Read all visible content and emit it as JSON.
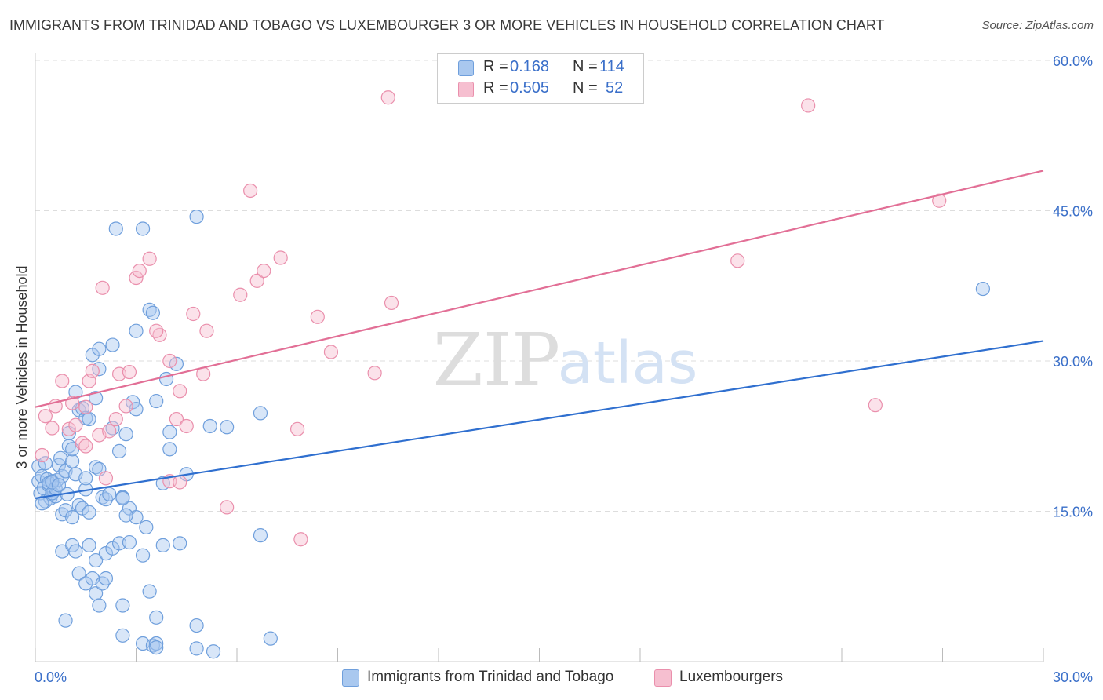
{
  "title": "IMMIGRANTS FROM TRINIDAD AND TOBAGO VS LUXEMBOURGER 3 OR MORE VEHICLES IN HOUSEHOLD CORRELATION CHART",
  "source": "Source: ZipAtlas.com",
  "watermark": {
    "zip": "ZIP",
    "atlas": "atlas"
  },
  "legend": {
    "rows": [
      {
        "r_label": "R =",
        "r_value": "0.168",
        "n_label": "N =",
        "n_value": "114"
      },
      {
        "r_label": "R =",
        "r_value": "0.505",
        "n_label": "N =",
        "n_value": "52"
      }
    ]
  },
  "colors": {
    "blue_fill": "#a9c8ef",
    "blue_stroke": "#6f9fdc",
    "blue_line": "#2f6fcf",
    "pink_fill": "#f6bfd0",
    "pink_stroke": "#ea8fac",
    "pink_line": "#e26f96",
    "tick_label": "#3a6fc9",
    "grid": "#dddddd"
  },
  "chart_data": {
    "type": "scatter",
    "title": "IMMIGRANTS FROM TRINIDAD AND TOBAGO VS LUXEMBOURGER 3 OR MORE VEHICLES IN HOUSEHOLD CORRELATION CHART",
    "xlabel": "",
    "ylabel": "3 or more Vehicles in Household",
    "xlim": [
      0,
      30
    ],
    "ylim": [
      0,
      60
    ],
    "x_tick_labels": [
      "0.0%",
      "30.0%"
    ],
    "y_ticks": [
      15,
      30,
      45,
      60
    ],
    "y_tick_labels": [
      "15.0%",
      "30.0%",
      "45.0%",
      "60.0%"
    ],
    "grid": true,
    "legend_position": "top-center",
    "series": [
      {
        "name": "Immigrants from Trinidad and Tobago",
        "color": "blue",
        "R": 0.168,
        "N": 114,
        "trend": {
          "x": [
            0,
            30
          ],
          "y": [
            16.3,
            32.0
          ]
        },
        "points": [
          [
            0.1,
            18.0
          ],
          [
            0.1,
            19.5
          ],
          [
            0.15,
            16.8
          ],
          [
            0.2,
            18.5
          ],
          [
            0.25,
            17.3
          ],
          [
            0.3,
            16.0
          ],
          [
            0.35,
            18.2
          ],
          [
            0.4,
            17.6
          ],
          [
            0.45,
            16.3
          ],
          [
            0.5,
            18.0
          ],
          [
            0.55,
            17.0
          ],
          [
            0.6,
            16.5
          ],
          [
            0.2,
            15.8
          ],
          [
            0.3,
            19.8
          ],
          [
            0.4,
            17.8
          ],
          [
            0.5,
            16.8
          ],
          [
            0.6,
            17.3
          ],
          [
            0.65,
            18.1
          ],
          [
            0.7,
            19.6
          ],
          [
            0.75,
            20.3
          ],
          [
            0.8,
            18.5
          ],
          [
            0.9,
            19.0
          ],
          [
            1.0,
            21.5
          ],
          [
            1.1,
            20.0
          ],
          [
            1.2,
            18.7
          ],
          [
            0.8,
            14.7
          ],
          [
            0.9,
            15.1
          ],
          [
            1.1,
            14.4
          ],
          [
            1.3,
            15.6
          ],
          [
            1.4,
            15.3
          ],
          [
            1.5,
            17.2
          ],
          [
            1.6,
            14.9
          ],
          [
            1.8,
            19.4
          ],
          [
            1.9,
            19.2
          ],
          [
            2.0,
            16.4
          ],
          [
            2.1,
            16.2
          ],
          [
            2.2,
            16.7
          ],
          [
            1.0,
            22.8
          ],
          [
            1.1,
            21.2
          ],
          [
            1.2,
            26.9
          ],
          [
            1.3,
            25.1
          ],
          [
            1.4,
            25.3
          ],
          [
            1.5,
            24.3
          ],
          [
            1.6,
            24.2
          ],
          [
            1.7,
            30.6
          ],
          [
            1.8,
            26.3
          ],
          [
            1.9,
            29.2
          ],
          [
            1.9,
            31.2
          ],
          [
            2.3,
            31.6
          ],
          [
            2.3,
            23.3
          ],
          [
            2.5,
            21.0
          ],
          [
            2.7,
            22.7
          ],
          [
            2.9,
            25.9
          ],
          [
            3.0,
            25.2
          ],
          [
            2.6,
            16.4
          ],
          [
            2.8,
            15.3
          ],
          [
            3.0,
            14.4
          ],
          [
            3.3,
            13.4
          ],
          [
            2.7,
            14.6
          ],
          [
            3.4,
            35.1
          ],
          [
            3.0,
            33.0
          ],
          [
            3.5,
            34.8
          ],
          [
            3.6,
            26.0
          ],
          [
            3.9,
            28.2
          ],
          [
            4.0,
            22.9
          ],
          [
            4.0,
            21.2
          ],
          [
            4.2,
            29.7
          ],
          [
            2.4,
            43.2
          ],
          [
            3.2,
            43.2
          ],
          [
            4.8,
            44.4
          ],
          [
            5.2,
            23.5
          ],
          [
            5.7,
            23.4
          ],
          [
            6.7,
            24.8
          ],
          [
            0.8,
            11.0
          ],
          [
            1.1,
            11.6
          ],
          [
            1.2,
            11.0
          ],
          [
            1.6,
            11.6
          ],
          [
            1.8,
            10.1
          ],
          [
            2.1,
            10.8
          ],
          [
            2.3,
            11.3
          ],
          [
            2.5,
            11.8
          ],
          [
            2.8,
            11.9
          ],
          [
            3.2,
            10.6
          ],
          [
            3.8,
            11.6
          ],
          [
            4.3,
            11.8
          ],
          [
            6.7,
            12.6
          ],
          [
            1.3,
            8.8
          ],
          [
            1.5,
            7.8
          ],
          [
            1.7,
            8.3
          ],
          [
            1.8,
            6.8
          ],
          [
            1.9,
            5.6
          ],
          [
            2.0,
            7.8
          ],
          [
            2.1,
            8.3
          ],
          [
            2.6,
            5.6
          ],
          [
            3.4,
            7.0
          ],
          [
            3.6,
            4.4
          ],
          [
            0.9,
            4.1
          ],
          [
            2.6,
            2.6
          ],
          [
            3.2,
            1.8
          ],
          [
            3.5,
            1.6
          ],
          [
            3.6,
            1.8
          ],
          [
            4.8,
            3.6
          ],
          [
            4.8,
            1.3
          ],
          [
            5.3,
            1.0
          ],
          [
            7.0,
            2.3
          ],
          [
            3.6,
            1.4
          ],
          [
            28.2,
            37.2
          ],
          [
            1.5,
            18.3
          ],
          [
            0.5,
            17.9
          ],
          [
            0.7,
            17.6
          ],
          [
            0.95,
            16.7
          ],
          [
            2.6,
            16.3
          ],
          [
            3.8,
            17.8
          ],
          [
            4.5,
            18.7
          ]
        ]
      },
      {
        "name": "Luxembourgers",
        "color": "pink",
        "R": 0.505,
        "N": 52,
        "trend": {
          "x": [
            0,
            30
          ],
          "y": [
            25.4,
            49.0
          ]
        },
        "points": [
          [
            0.2,
            20.6
          ],
          [
            0.3,
            24.5
          ],
          [
            0.5,
            23.3
          ],
          [
            0.6,
            25.5
          ],
          [
            0.8,
            28.0
          ],
          [
            1.0,
            23.2
          ],
          [
            1.1,
            25.8
          ],
          [
            1.2,
            23.6
          ],
          [
            1.4,
            21.8
          ],
          [
            1.5,
            25.4
          ],
          [
            1.6,
            28.0
          ],
          [
            1.7,
            29.0
          ],
          [
            1.9,
            22.6
          ],
          [
            2.2,
            23.0
          ],
          [
            2.4,
            24.2
          ],
          [
            2.5,
            28.7
          ],
          [
            2.7,
            25.5
          ],
          [
            2.8,
            28.9
          ],
          [
            3.0,
            38.3
          ],
          [
            3.1,
            39.0
          ],
          [
            3.4,
            40.2
          ],
          [
            3.7,
            32.6
          ],
          [
            4.0,
            30.0
          ],
          [
            4.2,
            24.2
          ],
          [
            4.3,
            27.0
          ],
          [
            4.5,
            23.5
          ],
          [
            4.7,
            34.7
          ],
          [
            5.0,
            28.7
          ],
          [
            5.1,
            33.0
          ],
          [
            6.1,
            36.6
          ],
          [
            6.6,
            38.0
          ],
          [
            6.8,
            39.0
          ],
          [
            7.3,
            40.3
          ],
          [
            7.8,
            23.2
          ],
          [
            8.4,
            34.4
          ],
          [
            8.8,
            30.9
          ],
          [
            10.1,
            28.8
          ],
          [
            10.6,
            35.8
          ],
          [
            10.5,
            56.3
          ],
          [
            6.4,
            47.0
          ],
          [
            2.0,
            37.3
          ],
          [
            3.6,
            33.0
          ],
          [
            1.5,
            21.5
          ],
          [
            5.7,
            15.4
          ],
          [
            7.9,
            12.2
          ],
          [
            4.0,
            18.0
          ],
          [
            4.3,
            17.9
          ],
          [
            2.1,
            18.3
          ],
          [
            20.9,
            40.0
          ],
          [
            23.0,
            55.5
          ],
          [
            26.9,
            46.0
          ],
          [
            25.0,
            25.6
          ]
        ]
      }
    ]
  }
}
